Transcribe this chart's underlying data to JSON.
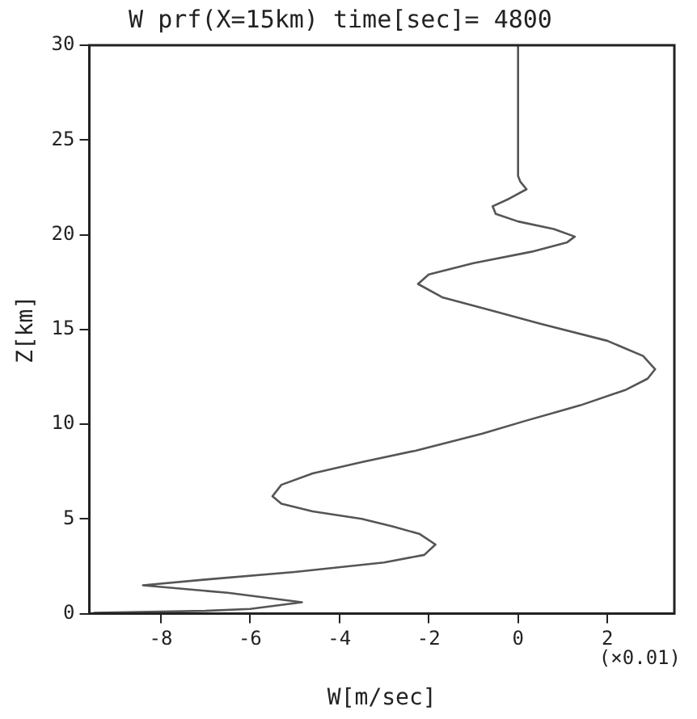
{
  "chart_data": {
    "type": "line",
    "title": "W prf(X=15km) time[sec]= 4800",
    "xlabel": "W[m/sec]",
    "ylabel": "Z[km]",
    "annotations": [
      "(×0.01)"
    ],
    "xlim": [
      -9.6,
      3.5
    ],
    "xticks": [
      -8,
      -6,
      -4,
      -2,
      0,
      2
    ],
    "ylim": [
      0,
      30
    ],
    "yticks": [
      0,
      5,
      10,
      15,
      20,
      25,
      30
    ],
    "grid": false,
    "legend": false,
    "marker": "none",
    "line_style": "solid",
    "series": [
      {
        "color": "#555555",
        "x": [
          -9.5,
          -7,
          -6,
          -4.84,
          -6.5,
          -8.4,
          -7,
          -5,
          -3,
          -2.1,
          -1.85,
          -2.2,
          -2.8,
          -3.5,
          -4.6,
          -5.3,
          -5.5,
          -5.3,
          -4.6,
          -3.5,
          -2.3,
          -0.8,
          0.2,
          1.4,
          2.4,
          2.9,
          3.07,
          2.8,
          2,
          0.5,
          -0.6,
          -1.7,
          -2.24,
          -2,
          -1,
          0.3,
          1.1,
          1.27,
          0.8,
          0,
          -0.5,
          -0.57,
          -0.2,
          0.19,
          0.05,
          0,
          0
        ],
        "values": [
          0.05,
          0.15,
          0.25,
          0.6,
          1.1,
          1.5,
          1.8,
          2.2,
          2.7,
          3.1,
          3.65,
          4.2,
          4.6,
          5,
          5.4,
          5.8,
          6.2,
          6.8,
          7.4,
          8,
          8.6,
          9.5,
          10.2,
          11,
          11.8,
          12.4,
          12.9,
          13.6,
          14.4,
          15.3,
          16,
          16.7,
          17.4,
          17.9,
          18.5,
          19.1,
          19.6,
          19.9,
          20.3,
          20.7,
          21.1,
          21.5,
          21.9,
          22.4,
          22.8,
          23.1,
          30
        ]
      }
    ]
  }
}
